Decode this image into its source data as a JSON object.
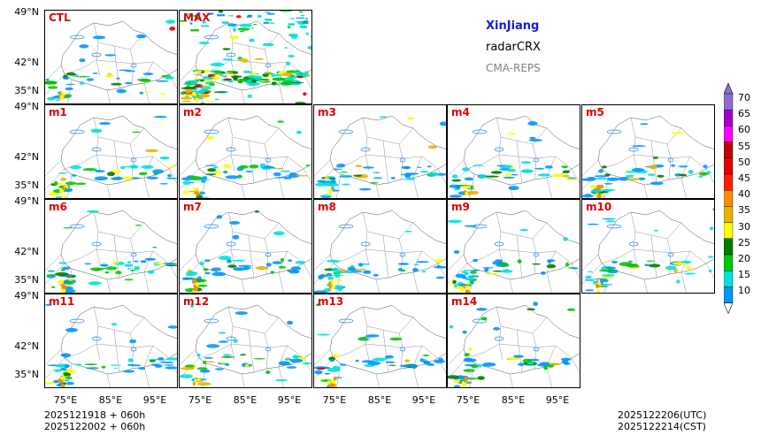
{
  "titles": {
    "region": "XinJiang",
    "product": "radarCRX",
    "model": "CMA-REPS"
  },
  "panels": [
    "CTL",
    "MAX",
    "m1",
    "m2",
    "m3",
    "m4",
    "m5",
    "m6",
    "m7",
    "m8",
    "m9",
    "m10",
    "m11",
    "m12",
    "m13",
    "m14"
  ],
  "y_ticks": [
    "49°N",
    "42°N",
    "35°N"
  ],
  "x_ticks": [
    "75°E",
    "85°E",
    "95°E"
  ],
  "colorbar": {
    "unit_levels": [
      10,
      15,
      20,
      25,
      30,
      35,
      40,
      45,
      50,
      55,
      60,
      65,
      70
    ],
    "labels": [
      "70",
      "65",
      "60",
      "55",
      "50",
      "45",
      "40",
      "35",
      "30",
      "25",
      "20",
      "15",
      "10"
    ],
    "colors": [
      "#8a6fd0",
      "#a000c8",
      "#ff00ff",
      "#c00000",
      "#e00000",
      "#ff2000",
      "#ff8c00",
      "#e6b400",
      "#ffff00",
      "#007a00",
      "#00c800",
      "#00e0e0",
      "#0096ff"
    ]
  },
  "footer": {
    "left_line1": "2025121918  +  060h",
    "left_line2": "2025122002  +  060h",
    "right_line1": "2025122206(UTC)",
    "right_line2": "2025122214(CST)"
  },
  "colors": {
    "label": "#e00000",
    "region": "#1a1acc",
    "model": "#808080"
  }
}
